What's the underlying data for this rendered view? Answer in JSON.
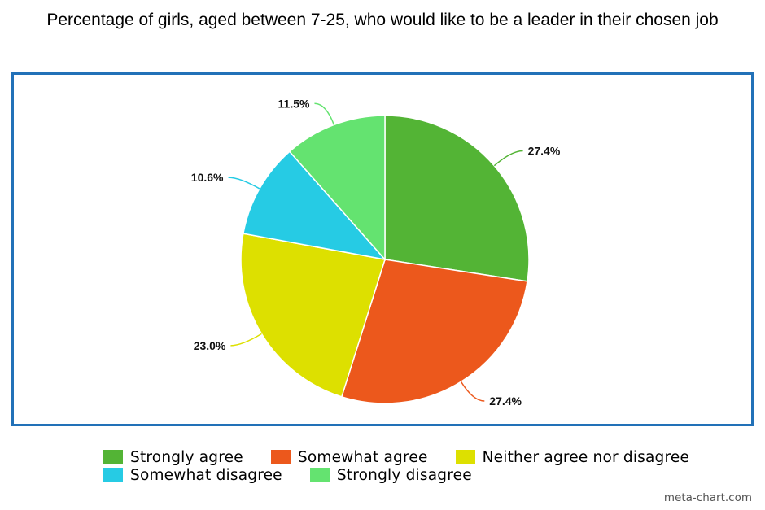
{
  "chart_data": {
    "type": "pie",
    "title": "Percentage of girls, aged between 7-25, who would like to be a leader in their chosen job",
    "categories": [
      "Strongly agree",
      "Somewhat agree",
      "Neither agree nor disagree",
      "Somewhat disagree",
      "Strongly disagree"
    ],
    "values": [
      27.4,
      27.4,
      23.0,
      10.6,
      11.5
    ],
    "labels": [
      "27.4%",
      "27.4%",
      "23.0%",
      "10.6%",
      "11.5%"
    ],
    "colors": [
      "#53b435",
      "#ec581c",
      "#dde000",
      "#26cbe4",
      "#64e370"
    ],
    "legend": "bottom"
  },
  "watermark": "meta-chart.com"
}
